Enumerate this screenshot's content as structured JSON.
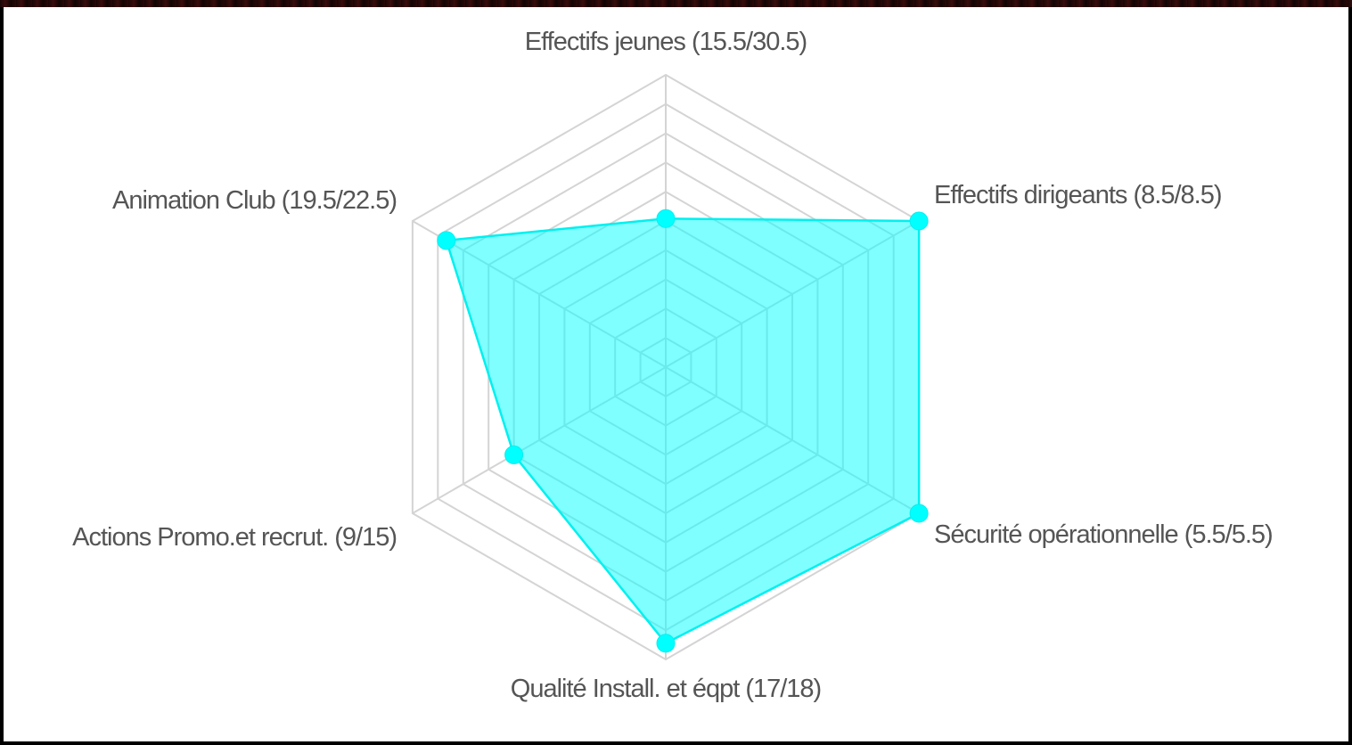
{
  "chart_data": {
    "type": "radar",
    "title": "",
    "axes": [
      {
        "label": "Effectifs jeunes (15.5/30.5)",
        "value": 15.5,
        "max": 30.5
      },
      {
        "label": "Effectifs dirigeants (8.5/8.5)",
        "value": 8.5,
        "max": 8.5
      },
      {
        "label": "Sécurité opérationnelle (5.5/5.5)",
        "value": 5.5,
        "max": 5.5
      },
      {
        "label": "Qualité Install. et éqpt (17/18)",
        "value": 17,
        "max": 18
      },
      {
        "label": "Actions Promo.et recrut. (9/15)",
        "value": 9,
        "max": 15
      },
      {
        "label": "Animation Club (19.5/22.5)",
        "value": 19.5,
        "max": 22.5
      }
    ],
    "grid_levels": 10,
    "grid": true,
    "colors": {
      "fill": "#00ffff",
      "stroke": "#00f0f0",
      "grid": "#d4d4d4",
      "label": "#555555"
    }
  }
}
